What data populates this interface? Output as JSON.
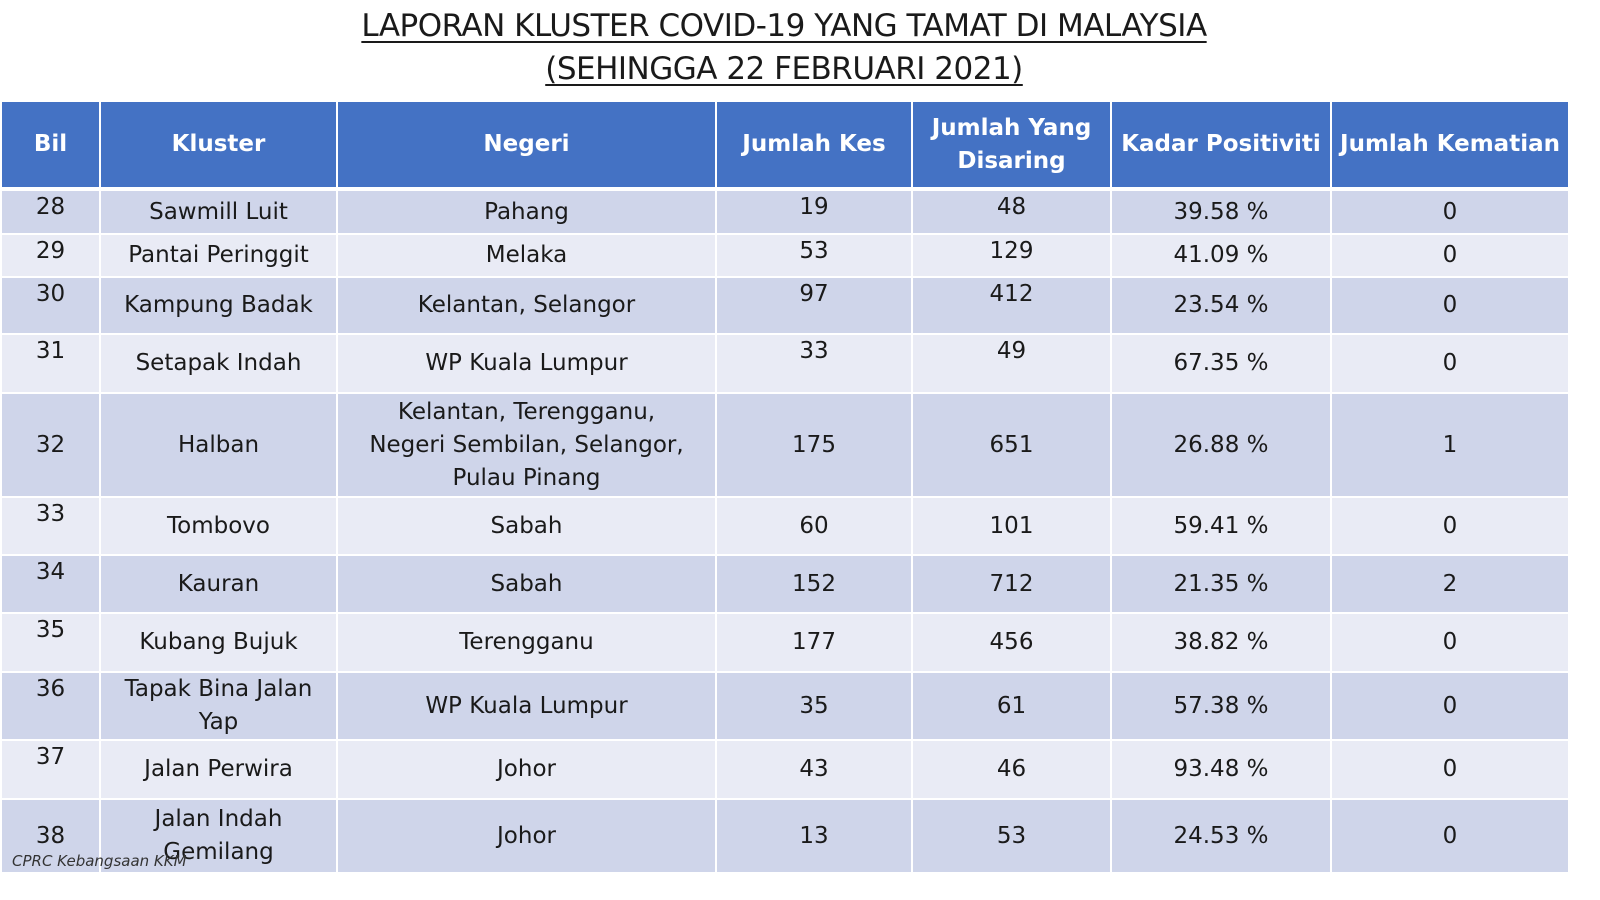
{
  "title": {
    "line1": "LAPORAN KLUSTER COVID-19 YANG TAMAT DI MALAYSIA",
    "line2": "(SEHINGGA  22 FEBRUARI 2021)"
  },
  "table": {
    "headers": {
      "bil": "Bil",
      "kluster": "Kluster",
      "negeri": "Negeri",
      "jumlah_kes": "Jumlah Kes",
      "jumlah_disaring": "Jumlah Yang Disaring",
      "kadar_positiviti": "Kadar Positiviti",
      "jumlah_kematian": "Jumlah Kematian"
    },
    "rows": [
      {
        "bil": "28",
        "kluster": "Sawmill Luit",
        "negeri": "Pahang",
        "kes": "19",
        "disaring": "48",
        "positiviti": "39.58 %",
        "kematian": "0"
      },
      {
        "bil": "29",
        "kluster": "Pantai Peringgit",
        "negeri": "Melaka",
        "kes": "53",
        "disaring": "129",
        "positiviti": "41.09 %",
        "kematian": "0"
      },
      {
        "bil": "30",
        "kluster": "Kampung Badak",
        "negeri": "Kelantan, Selangor",
        "kes": "97",
        "disaring": "412",
        "positiviti": "23.54 %",
        "kematian": "0"
      },
      {
        "bil": "31",
        "kluster": "Setapak Indah",
        "negeri": "WP Kuala Lumpur",
        "kes": "33",
        "disaring": "49",
        "positiviti": "67.35 %",
        "kematian": "0"
      },
      {
        "bil": "32",
        "kluster": "Halban",
        "negeri": "Kelantan, Terengganu, Negeri Sembilan, Selangor, Pulau Pinang",
        "kes": "175",
        "disaring": "651",
        "positiviti": "26.88 %",
        "kematian": "1"
      },
      {
        "bil": "33",
        "kluster": "Tombovo",
        "negeri": "Sabah",
        "kes": "60",
        "disaring": "101",
        "positiviti": "59.41 %",
        "kematian": "0"
      },
      {
        "bil": "34",
        "kluster": "Kauran",
        "negeri": "Sabah",
        "kes": "152",
        "disaring": "712",
        "positiviti": "21.35 %",
        "kematian": "2"
      },
      {
        "bil": "35",
        "kluster": "Kubang Bujuk",
        "negeri": "Terengganu",
        "kes": "177",
        "disaring": "456",
        "positiviti": "38.82 %",
        "kematian": "0"
      },
      {
        "bil": "36",
        "kluster": "Tapak Bina Jalan Yap",
        "negeri": "WP Kuala Lumpur",
        "kes": "35",
        "disaring": "61",
        "positiviti": "57.38 %",
        "kematian": "0"
      },
      {
        "bil": "37",
        "kluster": "Jalan Perwira",
        "negeri": "Johor",
        "kes": "43",
        "disaring": "46",
        "positiviti": "93.48 %",
        "kematian": "0"
      },
      {
        "bil": "38",
        "kluster": "Jalan Indah Gemilang",
        "negeri": "Johor",
        "kes": "13",
        "disaring": "53",
        "positiviti": "24.53 %",
        "kematian": "0"
      }
    ]
  },
  "footer": "CPRC Kebangsaan KKM"
}
